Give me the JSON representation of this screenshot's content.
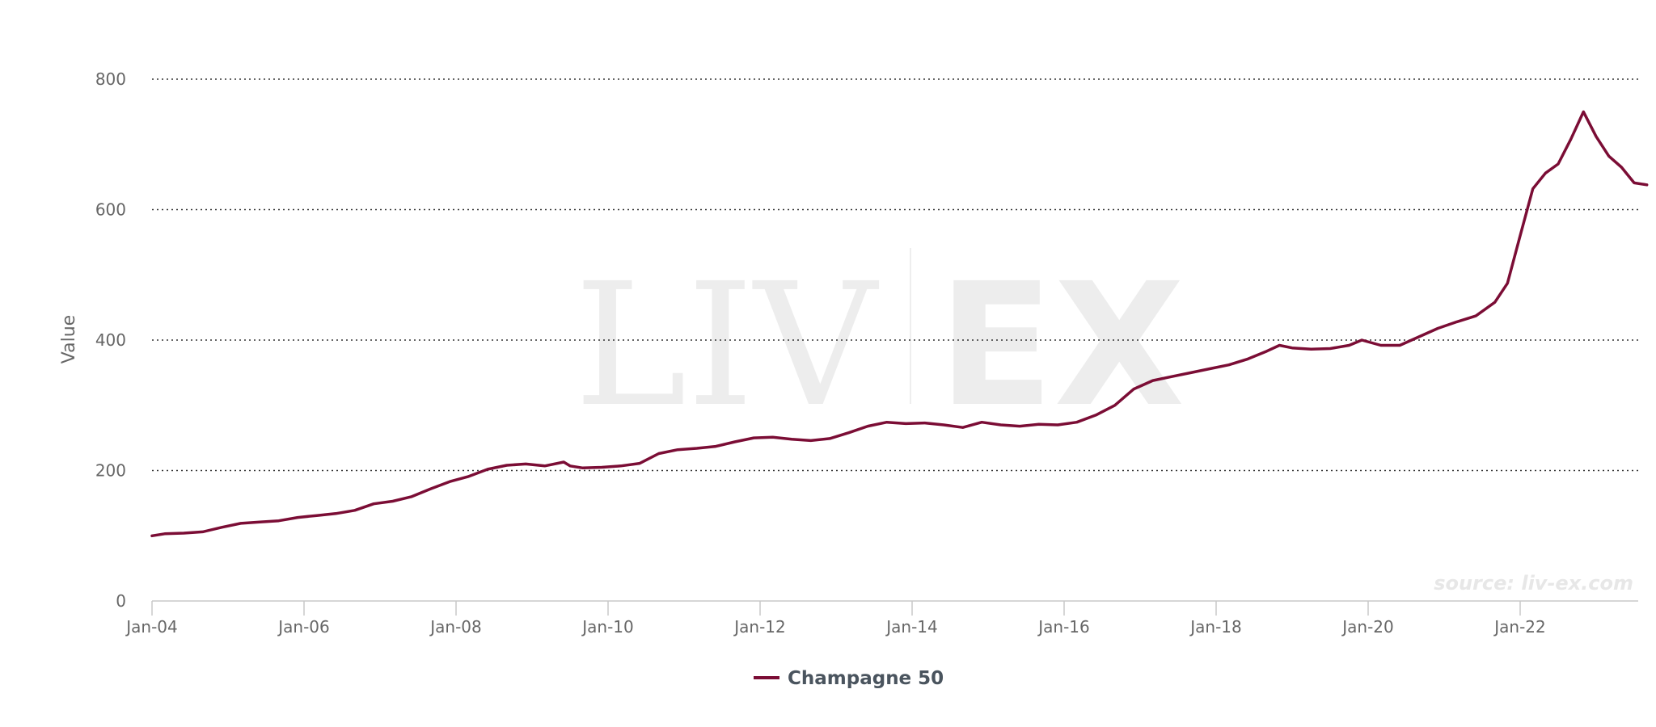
{
  "chart_data": {
    "type": "line",
    "title": "",
    "xlabel": "",
    "ylabel": "Value",
    "ylim": [
      0,
      800
    ],
    "yticks": [
      0,
      200,
      400,
      600,
      800
    ],
    "xticks": [
      "Jan-04",
      "Jan-06",
      "Jan-08",
      "Jan-10",
      "Jan-12",
      "Jan-14",
      "Jan-16",
      "Jan-18",
      "Jan-20",
      "Jan-22"
    ],
    "grid": "horizontal dotted",
    "legend": "bottom-center",
    "credit": "source: liv-ex.com",
    "watermark": {
      "left": "LIV",
      "right": "EX"
    },
    "series": [
      {
        "name": "Champagne 50",
        "color": "#7b0d35",
        "points": [
          [
            "2004-01",
            100
          ],
          [
            "2004-03",
            103
          ],
          [
            "2004-06",
            104
          ],
          [
            "2004-09",
            106
          ],
          [
            "2004-12",
            113
          ],
          [
            "2005-03",
            119
          ],
          [
            "2005-06",
            121
          ],
          [
            "2005-09",
            123
          ],
          [
            "2005-12",
            128
          ],
          [
            "2006-03",
            131
          ],
          [
            "2006-06",
            134
          ],
          [
            "2006-09",
            139
          ],
          [
            "2006-12",
            149
          ],
          [
            "2007-03",
            153
          ],
          [
            "2007-06",
            160
          ],
          [
            "2007-09",
            172
          ],
          [
            "2007-12",
            183
          ],
          [
            "2008-03",
            191
          ],
          [
            "2008-06",
            202
          ],
          [
            "2008-09",
            208
          ],
          [
            "2008-12",
            210
          ],
          [
            "2009-03",
            207
          ],
          [
            "2009-06",
            213
          ],
          [
            "2009-07",
            207
          ],
          [
            "2009-09",
            204
          ],
          [
            "2009-12",
            205
          ],
          [
            "2010-03",
            207
          ],
          [
            "2010-06",
            211
          ],
          [
            "2010-09",
            226
          ],
          [
            "2010-12",
            232
          ],
          [
            "2011-03",
            234
          ],
          [
            "2011-06",
            237
          ],
          [
            "2011-09",
            244
          ],
          [
            "2011-12",
            250
          ],
          [
            "2012-03",
            251
          ],
          [
            "2012-06",
            248
          ],
          [
            "2012-09",
            246
          ],
          [
            "2012-12",
            249
          ],
          [
            "2013-03",
            258
          ],
          [
            "2013-06",
            268
          ],
          [
            "2013-09",
            274
          ],
          [
            "2013-12",
            272
          ],
          [
            "2014-03",
            273
          ],
          [
            "2014-06",
            270
          ],
          [
            "2014-09",
            266
          ],
          [
            "2014-12",
            274
          ],
          [
            "2015-03",
            270
          ],
          [
            "2015-06",
            268
          ],
          [
            "2015-09",
            271
          ],
          [
            "2015-12",
            270
          ],
          [
            "2016-03",
            274
          ],
          [
            "2016-06",
            285
          ],
          [
            "2016-09",
            300
          ],
          [
            "2016-12",
            325
          ],
          [
            "2017-03",
            338
          ],
          [
            "2017-06",
            344
          ],
          [
            "2017-09",
            350
          ],
          [
            "2017-12",
            356
          ],
          [
            "2018-03",
            362
          ],
          [
            "2018-06",
            371
          ],
          [
            "2018-09",
            383
          ],
          [
            "2018-11",
            392
          ],
          [
            "2019-01",
            388
          ],
          [
            "2019-04",
            386
          ],
          [
            "2019-07",
            387
          ],
          [
            "2019-10",
            392
          ],
          [
            "2019-12",
            400
          ],
          [
            "2020-03",
            392
          ],
          [
            "2020-06",
            392
          ],
          [
            "2020-09",
            405
          ],
          [
            "2020-12",
            418
          ],
          [
            "2021-03",
            428
          ],
          [
            "2021-06",
            437
          ],
          [
            "2021-09",
            458
          ],
          [
            "2021-11",
            487
          ],
          [
            "2022-01",
            560
          ],
          [
            "2022-03",
            632
          ],
          [
            "2022-05",
            656
          ],
          [
            "2022-07",
            670
          ],
          [
            "2022-09",
            708
          ],
          [
            "2022-11",
            750
          ],
          [
            "2023-01",
            712
          ],
          [
            "2023-03",
            682
          ],
          [
            "2023-05",
            665
          ],
          [
            "2023-07",
            641
          ],
          [
            "2023-09",
            638
          ]
        ]
      }
    ]
  }
}
